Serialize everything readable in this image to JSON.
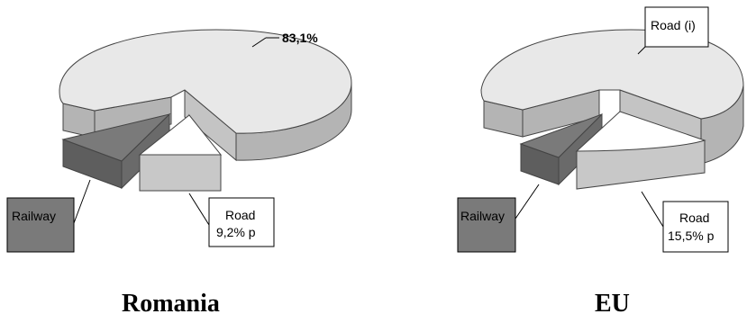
{
  "chart_data": [
    {
      "type": "pie",
      "title": "Romania",
      "slices": [
        {
          "label": "",
          "value_label": "83,1%",
          "value": 83.1,
          "color": "#e8e8e8"
        },
        {
          "label": "Railway",
          "value_label": "",
          "value": 7.7,
          "color": "#7a7a7a"
        },
        {
          "label": "Road",
          "value_label": "9,2% p",
          "value": 9.2,
          "color": "#ffffff"
        }
      ]
    },
    {
      "type": "pie",
      "title": "EU",
      "slices": [
        {
          "label": "Road (i)",
          "value_label": "",
          "value": 76.3,
          "color": "#e8e8e8"
        },
        {
          "label": "Railway",
          "value_label": "",
          "value": 8.2,
          "color": "#7a7a7a"
        },
        {
          "label": "Road",
          "value_label": "15,5% p",
          "value": 15.5,
          "color": "#ffffff"
        }
      ]
    }
  ],
  "colors": {
    "big_top": "#e8e8e8",
    "big_side": "#b4b4b4",
    "rail_top": "#7a7a7a",
    "rail_side": "#5e5e5e",
    "road_top": "#ffffff",
    "road_side": "#c8c8c8"
  }
}
